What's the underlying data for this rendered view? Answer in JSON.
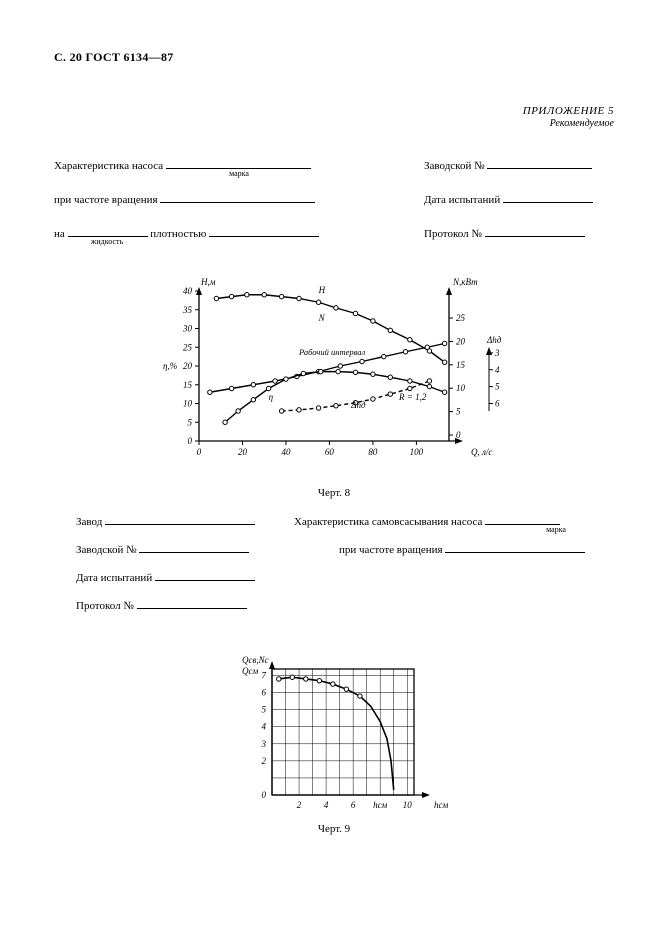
{
  "header": "С. 20  ГОСТ 6134—87",
  "appendix": {
    "title": "ПРИЛОЖЕНИЕ 5",
    "subtitle": "Рекомендуемое"
  },
  "fields1": {
    "f1_label": "Характеристика насоса",
    "f1_under": "марка",
    "f2_label": "при частоте вращения",
    "f3_prefix": "на",
    "f3_under": "жидкость",
    "f3_mid": "плотностью",
    "r1": "Заводской №",
    "r2": "Дата испытаний",
    "r3": "Протокол №"
  },
  "fig8": {
    "caption": "Черт. 8",
    "y1_label": "Н,м",
    "y1_ticks": [
      "40",
      "35",
      "30",
      "25",
      "20",
      "15",
      "10",
      "5",
      "0"
    ],
    "y2_label": "η,%",
    "y3_label": "N,кВт",
    "y3_ticks": [
      "25",
      "20",
      "15",
      "10",
      "5",
      "0"
    ],
    "y4_label": "Δhд",
    "y4_ticks": [
      "6",
      "5",
      "4",
      "3"
    ],
    "x_ticks": [
      "0",
      "20",
      "40",
      "60",
      "80",
      "100"
    ],
    "x_label": "Q, л/с",
    "curves": {
      "H": {
        "label": "Н",
        "pts": [
          [
            8,
            38
          ],
          [
            15,
            38.5
          ],
          [
            22,
            39
          ],
          [
            30,
            39
          ],
          [
            38,
            38.5
          ],
          [
            46,
            38
          ],
          [
            55,
            37
          ],
          [
            63,
            35.5
          ],
          [
            72,
            34
          ],
          [
            80,
            32
          ],
          [
            88,
            29.5
          ],
          [
            97,
            27
          ],
          [
            106,
            24
          ],
          [
            113,
            21
          ]
        ]
      },
      "N": {
        "label": "N",
        "pts": [
          [
            5,
            13
          ],
          [
            15,
            14
          ],
          [
            25,
            15
          ],
          [
            35,
            16
          ],
          [
            45,
            17.2
          ],
          [
            55,
            18.5
          ],
          [
            65,
            20
          ],
          [
            75,
            21.2
          ],
          [
            85,
            22.5
          ],
          [
            95,
            23.8
          ],
          [
            105,
            25
          ],
          [
            113,
            26
          ]
        ]
      },
      "eta": {
        "label": "η",
        "pts": [
          [
            12,
            5
          ],
          [
            18,
            8
          ],
          [
            25,
            11
          ],
          [
            32,
            14
          ],
          [
            40,
            16.5
          ],
          [
            48,
            18
          ],
          [
            56,
            18.5
          ],
          [
            64,
            18.5
          ],
          [
            72,
            18.3
          ],
          [
            80,
            17.8
          ],
          [
            88,
            17
          ],
          [
            97,
            16
          ],
          [
            106,
            14.5
          ],
          [
            113,
            13
          ]
        ]
      },
      "dh": {
        "label": "Δhд",
        "pts": [
          [
            38,
            8
          ],
          [
            46,
            8.3
          ],
          [
            55,
            8.8
          ],
          [
            63,
            9.4
          ],
          [
            72,
            10.2
          ],
          [
            80,
            11.2
          ],
          [
            88,
            12.5
          ],
          [
            97,
            14
          ],
          [
            106,
            16
          ]
        ]
      }
    },
    "text_work": "Рабочий интервал",
    "text_R": "R = 1,2"
  },
  "fields2": {
    "l1": "Завод",
    "l2": "Заводской №",
    "l3": "Дата испытаний",
    "l4": "Протокол №",
    "r1": "Характеристика самовсасывания насоса",
    "r1_under": "марка",
    "r2": "при частоте вращения"
  },
  "fig9": {
    "caption": "Черт. 9",
    "y_label1": "Qсв,Nс",
    "y_label2": "Qсм",
    "y_ticks": [
      "7",
      "6",
      "5",
      "4",
      "3",
      "2",
      "0"
    ],
    "x_ticks": [
      "2",
      "4",
      "6",
      "hсм",
      "10"
    ],
    "x_label": "hсм",
    "curve": {
      "pts": [
        [
          0.5,
          6.8
        ],
        [
          1.5,
          6.9
        ],
        [
          2.5,
          6.8
        ],
        [
          3.5,
          6.7
        ],
        [
          4.5,
          6.5
        ],
        [
          5.5,
          6.2
        ],
        [
          6.5,
          5.8
        ],
        [
          7.3,
          5.2
        ],
        [
          8.0,
          4.3
        ],
        [
          8.5,
          3.3
        ],
        [
          8.8,
          2.0
        ],
        [
          9.0,
          0.3
        ]
      ]
    }
  },
  "style": {
    "ink": "#000000",
    "dash": "4 3"
  }
}
